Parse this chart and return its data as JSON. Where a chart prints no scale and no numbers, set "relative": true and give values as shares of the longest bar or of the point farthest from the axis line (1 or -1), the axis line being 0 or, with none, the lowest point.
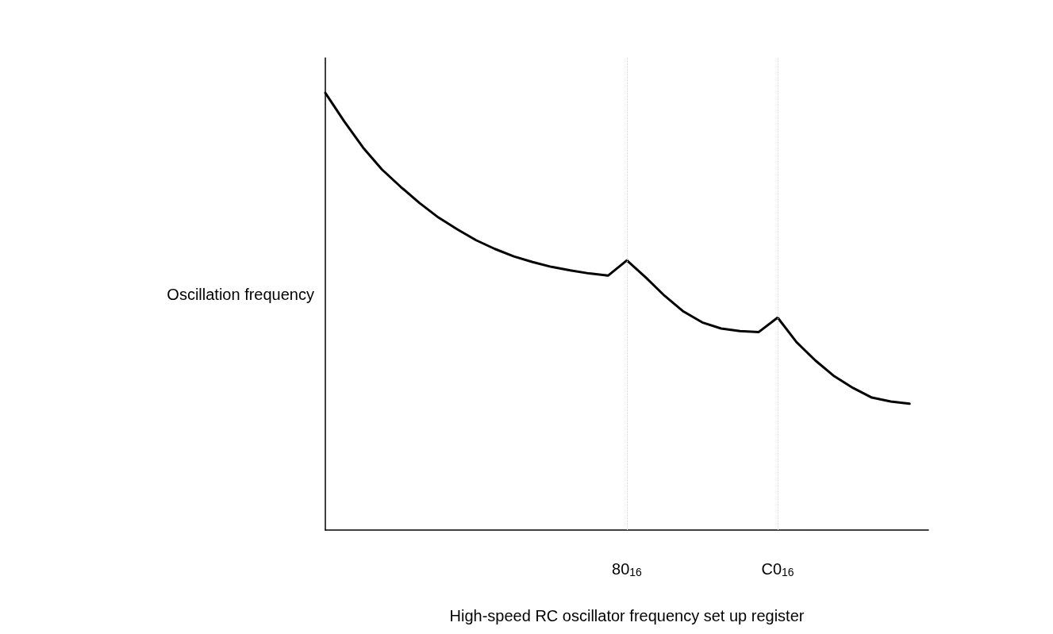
{
  "chart_data": {
    "type": "line",
    "relative": true,
    "xlabel": "High-speed RC oscillator frequency set up register",
    "ylabel": "Oscillation frequency",
    "categories": [
      null,
      null,
      null,
      null,
      null,
      null,
      null,
      null,
      null,
      null,
      null,
      null,
      null,
      null,
      null,
      null,
      "80$_{16}$",
      null,
      null,
      null,
      null,
      null,
      null,
      null,
      "C0$_{16}$",
      null,
      null,
      null,
      null,
      null,
      null,
      null,
      null
    ],
    "tick_labels": "x",
    "grid": false,
    "marker": "none",
    "line_style": "solid",
    "ref_lines": [
      {
        "axis": "x",
        "value": "80$_{16}$",
        "color": "#d9d9d9",
        "line_style": "dotted"
      },
      {
        "axis": "x",
        "value": "C0$_{16}$",
        "color": "#d9d9d9",
        "line_style": "dotted"
      }
    ],
    "series": [
      {
        "color": "#000000",
        "values": [
          1,
          0.935,
          0.875,
          0.825,
          0.785,
          0.748,
          0.715,
          0.688,
          0.663,
          0.643,
          0.626,
          0.613,
          0.602,
          0.594,
          0.587,
          0.582,
          0.617,
          0.578,
          0.536,
          0.5,
          0.475,
          0.461,
          0.455,
          0.453,
          0.486,
          0.43,
          0.388,
          0.352,
          0.325,
          0.303,
          0.294,
          0.289,
          null
        ]
      }
    ]
  }
}
